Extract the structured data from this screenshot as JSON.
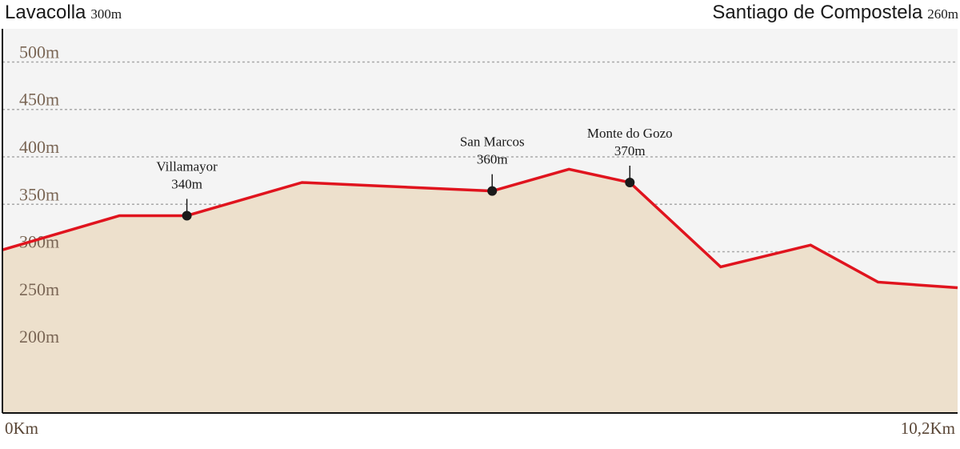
{
  "route": {
    "start": {
      "name": "Lavacolla",
      "altitude": "300m"
    },
    "end": {
      "name": "Santiago de Compostela",
      "altitude": "260m"
    }
  },
  "colors": {
    "background": "#f4f4f4",
    "fill": "#ede0cc",
    "line": "#e0141e",
    "grid": "#a9a9a9",
    "tick_text": "#7a6655",
    "marker": "#1a1a1a"
  },
  "chart_data": {
    "type": "area",
    "title": "",
    "xlabel": "",
    "ylabel": "",
    "xlim": [
      0,
      10.2
    ],
    "ylim": [
      130,
      535
    ],
    "yticks": [
      200,
      250,
      300,
      350,
      400,
      450,
      500
    ],
    "ytick_labels": [
      "200m",
      "250m",
      "300m",
      "350m",
      "400m",
      "450m",
      "500m"
    ],
    "xtick_labels": [
      {
        "x": 0,
        "label": "0Km"
      },
      {
        "x": 10.2,
        "label": "10,2Km"
      }
    ],
    "grid": true,
    "series": [
      {
        "x": [
          0,
          1.25,
          1.97,
          3.2,
          5.23,
          6.05,
          6.7,
          7.67,
          8.63,
          9.35,
          10.2
        ],
        "y": [
          302,
          338,
          338,
          373,
          364,
          387,
          373,
          284,
          307,
          268,
          262
        ]
      }
    ],
    "annotations": [
      {
        "name": "Villamayor",
        "altitude": "340m",
        "x": 1.97,
        "y": 338
      },
      {
        "name": "San Marcos",
        "altitude": "360m",
        "x": 5.23,
        "y": 364
      },
      {
        "name": "Monte do Gozo",
        "altitude": "370m",
        "x": 6.7,
        "y": 373
      }
    ]
  }
}
